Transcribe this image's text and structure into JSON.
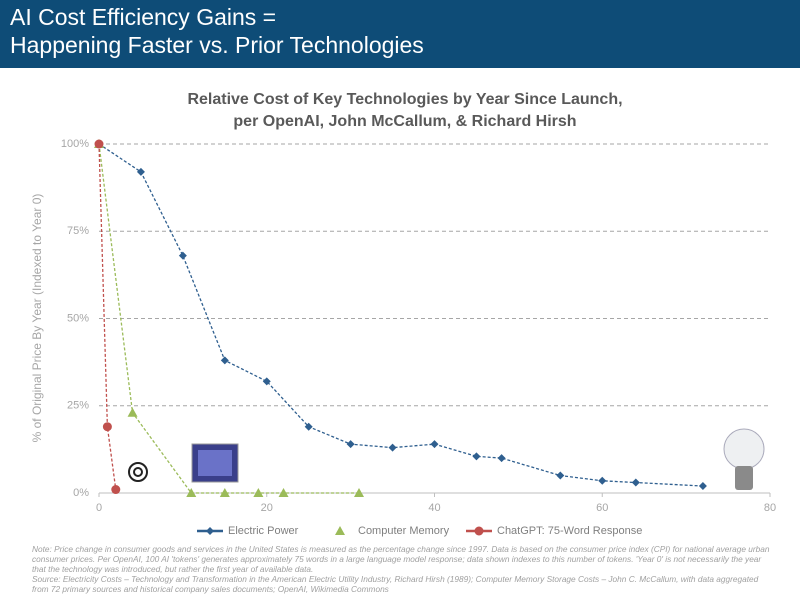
{
  "header": {
    "title_lines": [
      "AI Cost Efficiency Gains =",
      "Happening Faster vs. Prior Technologies"
    ]
  },
  "chart_data": {
    "type": "line",
    "title": [
      "Relative Cost of Key Technologies by Year Since Launch,",
      "per OpenAI, John McCallum, & Richard Hirsh"
    ],
    "y_label": "% of Original Price By Year (Indexed to Year 0)",
    "xlim": [
      0,
      80
    ],
    "xticks": [
      0,
      20,
      40,
      60,
      80
    ],
    "ylim": [
      0,
      100
    ],
    "yticks": [
      {
        "value": 0,
        "label": "0%"
      },
      {
        "value": 25,
        "label": "25%"
      },
      {
        "value": 50,
        "label": "50%"
      },
      {
        "value": 75,
        "label": "75%"
      },
      {
        "value": 100,
        "label": "100%"
      }
    ],
    "grid": true,
    "series": [
      {
        "name": "Electric Power",
        "color": "#2f5f8f",
        "marker": "diamond",
        "x": [
          0,
          5,
          10,
          15,
          20,
          25,
          30,
          35,
          40,
          45,
          48,
          55,
          60,
          64,
          72
        ],
        "values": [
          100,
          92,
          68,
          38,
          32,
          19,
          14,
          13,
          14,
          10.5,
          10,
          5,
          3.5,
          3,
          2
        ]
      },
      {
        "name": "Computer Memory",
        "color": "#9bbb59",
        "marker": "triangle",
        "x": [
          0,
          4,
          11,
          15,
          19,
          22,
          31
        ],
        "values": [
          100,
          23,
          0,
          0,
          0,
          0,
          0
        ]
      },
      {
        "name": "ChatGPT: 75-Word Response",
        "color": "#c0504d",
        "marker": "circle",
        "x": [
          0,
          1,
          2
        ],
        "values": [
          100,
          19,
          1
        ]
      }
    ]
  },
  "footnotes": {
    "note": "Note: Price change in consumer goods and services in the United States is measured as the percentage change since 1997. Data is based on the consumer price index (CPI) for national average urban consumer prices. Per OpenAI, 100 AI 'tokens' generates approximately 75 words in a large language model response; data shown indexes to this number of tokens. 'Year 0' is not necessarily the year that the technology was introduced, but rather the first year of available data.",
    "source": "Source: Electricity Costs – Technology and Transformation in the American Electric Utility Industry, Richard Hirsh (1989); Computer Memory Storage Costs – John C. McCallum, with data aggregated from 72 primary sources and historical company sales documents; OpenAI, Wikimedia Commons"
  }
}
